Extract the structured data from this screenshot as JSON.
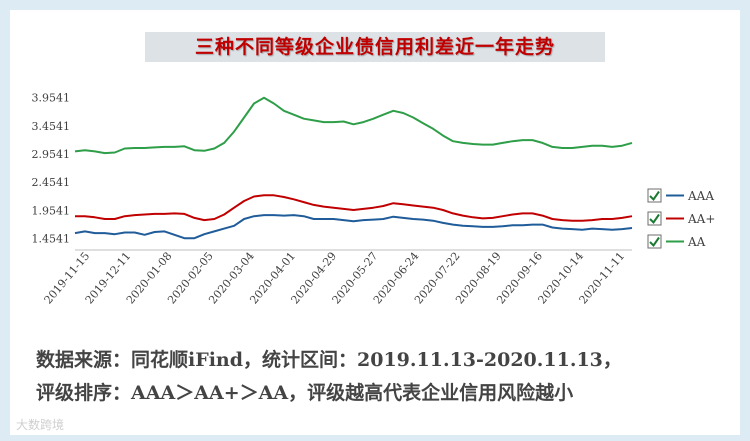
{
  "chart_data": {
    "type": "line",
    "title": "三种不同等级企业债信用利差近一年走势",
    "x_tick_labels": [
      "2019-11-15",
      "2019-12-11",
      "2020-01-08",
      "2020-02-05",
      "2020-03-04",
      "2020-04-01",
      "2020-04-29",
      "2020-05-27",
      "2020-06-24",
      "2020-07-22",
      "2020-08-19",
      "2020-09-16",
      "2020-10-14",
      "2020-11-11"
    ],
    "y_tick_labels": [
      "1.4541",
      "1.9541",
      "2.4541",
      "2.9541",
      "3.4541",
      "3.9541"
    ],
    "ylim": [
      1.25,
      4.0
    ],
    "grid": false,
    "legend_position": "right",
    "series": [
      {
        "name": "AAA",
        "color": "#1f5c99",
        "values": [
          1.55,
          1.58,
          1.55,
          1.55,
          1.53,
          1.56,
          1.56,
          1.52,
          1.57,
          1.58,
          1.52,
          1.46,
          1.46,
          1.53,
          1.58,
          1.63,
          1.68,
          1.8,
          1.85,
          1.87,
          1.87,
          1.86,
          1.87,
          1.85,
          1.8,
          1.8,
          1.8,
          1.78,
          1.76,
          1.78,
          1.79,
          1.8,
          1.84,
          1.82,
          1.8,
          1.79,
          1.77,
          1.73,
          1.7,
          1.68,
          1.67,
          1.66,
          1.66,
          1.67,
          1.69,
          1.69,
          1.7,
          1.7,
          1.65,
          1.63,
          1.62,
          1.61,
          1.63,
          1.62,
          1.61,
          1.62,
          1.64
        ]
      },
      {
        "name": "AA+",
        "color": "#c00000",
        "values": [
          1.85,
          1.85,
          1.83,
          1.8,
          1.8,
          1.85,
          1.87,
          1.88,
          1.89,
          1.89,
          1.9,
          1.89,
          1.82,
          1.78,
          1.8,
          1.88,
          2.0,
          2.12,
          2.2,
          2.22,
          2.22,
          2.19,
          2.15,
          2.1,
          2.05,
          2.02,
          2.0,
          1.98,
          1.96,
          1.98,
          2.0,
          2.03,
          2.08,
          2.06,
          2.04,
          2.02,
          2.0,
          1.96,
          1.9,
          1.86,
          1.83,
          1.81,
          1.82,
          1.85,
          1.88,
          1.9,
          1.9,
          1.86,
          1.8,
          1.78,
          1.77,
          1.77,
          1.78,
          1.8,
          1.8,
          1.82,
          1.85
        ]
      },
      {
        "name": "AA",
        "color": "#2e9e48",
        "values": [
          3.0,
          3.02,
          3.0,
          2.97,
          2.98,
          3.05,
          3.06,
          3.06,
          3.07,
          3.08,
          3.08,
          3.09,
          3.02,
          3.01,
          3.05,
          3.15,
          3.35,
          3.6,
          3.85,
          3.95,
          3.85,
          3.72,
          3.65,
          3.58,
          3.55,
          3.52,
          3.52,
          3.53,
          3.48,
          3.52,
          3.58,
          3.65,
          3.72,
          3.68,
          3.6,
          3.5,
          3.4,
          3.28,
          3.18,
          3.15,
          3.13,
          3.12,
          3.12,
          3.15,
          3.18,
          3.2,
          3.2,
          3.15,
          3.08,
          3.06,
          3.06,
          3.08,
          3.1,
          3.1,
          3.08,
          3.1,
          3.15
        ]
      }
    ]
  },
  "notes": {
    "line1": "数据来源：同花顺iFind，统计区间：2019.11.13-2020.11.13，",
    "line2": "评级排序：AAA＞AA+＞AA，评级越高代表企业信用风险越小"
  },
  "watermark": "大数跨境"
}
